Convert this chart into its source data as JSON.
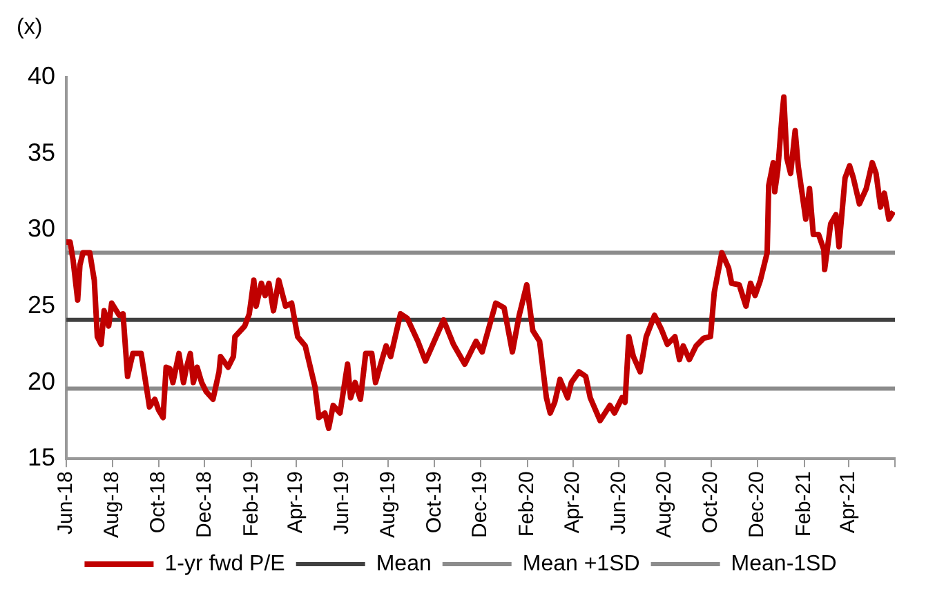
{
  "chart_data": {
    "type": "line",
    "ylabel": "(x)",
    "x": [
      "2018-06-01",
      "2018-06-06",
      "2018-06-10",
      "2018-06-16",
      "2018-06-19",
      "2018-06-23",
      "2018-07-02",
      "2018-07-08",
      "2018-07-12",
      "2018-07-17",
      "2018-07-21",
      "2018-07-27",
      "2018-07-31",
      "2018-08-10",
      "2018-08-15",
      "2018-08-21",
      "2018-08-28",
      "2018-09-08",
      "2018-09-19",
      "2018-09-26",
      "2018-10-01",
      "2018-10-07",
      "2018-10-11",
      "2018-10-16",
      "2018-10-20",
      "2018-10-28",
      "2018-11-03",
      "2018-11-07",
      "2018-11-12",
      "2018-11-16",
      "2018-11-21",
      "2018-11-27",
      "2018-12-03",
      "2018-12-12",
      "2018-12-20",
      "2018-12-22",
      "2019-01-01",
      "2019-01-08",
      "2019-01-10",
      "2019-01-23",
      "2019-01-29",
      "2019-02-04",
      "2019-02-07",
      "2019-02-14",
      "2019-02-19",
      "2019-02-24",
      "2019-03-02",
      "2019-03-09",
      "2019-03-18",
      "2019-03-26",
      "2019-04-03",
      "2019-04-13",
      "2019-04-26",
      "2019-05-01",
      "2019-05-09",
      "2019-05-14",
      "2019-05-20",
      "2019-05-29",
      "2019-06-08",
      "2019-06-12",
      "2019-06-18",
      "2019-06-25",
      "2019-07-02",
      "2019-07-10",
      "2019-07-15",
      "2019-07-23",
      "2019-07-29",
      "2019-08-04",
      "2019-08-17",
      "2019-08-26",
      "2019-09-09",
      "2019-09-19",
      "2019-09-28",
      "2019-10-13",
      "2019-10-26",
      "2019-11-10",
      "2019-11-25",
      "2019-12-03",
      "2019-12-21",
      "2020-01-01",
      "2020-01-12",
      "2020-01-21",
      "2020-01-31",
      "2020-02-08",
      "2020-02-17",
      "2020-02-26",
      "2020-03-02",
      "2020-03-08",
      "2020-03-15",
      "2020-03-25",
      "2020-03-30",
      "2020-04-09",
      "2020-04-18",
      "2020-04-24",
      "2020-05-07",
      "2020-05-20",
      "2020-05-26",
      "2020-06-05",
      "2020-06-09",
      "2020-06-14",
      "2020-06-20",
      "2020-06-29",
      "2020-07-07",
      "2020-07-18",
      "2020-07-27",
      "2020-08-04",
      "2020-08-14",
      "2020-08-20",
      "2020-08-25",
      "2020-09-02",
      "2020-09-11",
      "2020-09-21",
      "2020-09-30",
      "2020-10-05",
      "2020-10-15",
      "2020-10-24",
      "2020-10-28",
      "2020-11-07",
      "2020-11-16",
      "2020-11-22",
      "2020-11-28",
      "2020-12-05",
      "2020-12-14",
      "2020-12-16",
      "2020-12-22",
      "2020-12-24",
      "2020-12-28",
      "2021-01-03",
      "2021-01-05",
      "2021-01-09",
      "2021-01-14",
      "2021-01-20",
      "2021-01-24",
      "2021-02-03",
      "2021-02-08",
      "2021-02-13",
      "2021-02-20",
      "2021-02-27",
      "2021-02-28",
      "2021-03-08",
      "2021-03-15",
      "2021-03-19",
      "2021-03-27",
      "2021-04-02",
      "2021-04-07",
      "2021-04-15",
      "2021-04-24",
      "2021-05-02",
      "2021-05-07",
      "2021-05-13",
      "2021-05-18",
      "2021-05-24",
      "2021-05-30"
    ],
    "series": [
      {
        "name": "1-yr fwd P/E",
        "color": "#c00000",
        "values": [
          29.2,
          29.2,
          28.0,
          25.4,
          27.7,
          28.5,
          28.5,
          26.7,
          23.0,
          22.5,
          24.7,
          23.7,
          25.2,
          24.4,
          24.5,
          20.4,
          21.9,
          21.9,
          18.4,
          18.9,
          18.2,
          17.7,
          21.0,
          20.9,
          20.0,
          21.9,
          20.0,
          21.0,
          21.9,
          20.0,
          21.0,
          20.0,
          19.4,
          18.9,
          20.7,
          21.7,
          21.0,
          21.7,
          23.0,
          23.7,
          24.5,
          26.7,
          25.0,
          26.5,
          25.7,
          26.5,
          24.7,
          26.7,
          25.0,
          25.2,
          23.0,
          22.4,
          19.7,
          17.7,
          18.0,
          17.0,
          18.5,
          18.0,
          21.2,
          19.0,
          20.0,
          18.9,
          21.9,
          21.9,
          20.0,
          21.4,
          22.4,
          21.7,
          24.5,
          24.2,
          22.7,
          21.4,
          22.4,
          24.1,
          22.5,
          21.2,
          22.7,
          22.0,
          25.2,
          24.9,
          22.0,
          24.4,
          26.4,
          23.4,
          22.7,
          19.0,
          18.0,
          18.7,
          20.2,
          19.0,
          20.0,
          20.7,
          20.4,
          19.0,
          17.5,
          18.5,
          18.0,
          19.0,
          18.7,
          23.0,
          21.7,
          20.7,
          23.0,
          24.4,
          23.5,
          22.5,
          23.0,
          21.5,
          22.4,
          21.5,
          22.4,
          22.9,
          23.0,
          25.9,
          28.5,
          27.5,
          26.5,
          26.4,
          25.0,
          26.5,
          25.7,
          26.7,
          28.5,
          32.9,
          34.4,
          32.5,
          33.9,
          37.7,
          38.7,
          34.7,
          33.7,
          36.5,
          34.2,
          30.7,
          32.7,
          29.7,
          29.7,
          28.7,
          27.4,
          30.4,
          31.0,
          28.9,
          33.4,
          34.2,
          33.4,
          31.7,
          32.7,
          34.4,
          33.7,
          31.5,
          32.4,
          30.7,
          31.2
        ]
      }
    ],
    "ref_lines": [
      {
        "axis": "y",
        "value": 24.1,
        "label": "Mean",
        "color": "#404040"
      },
      {
        "axis": "y",
        "value": 28.5,
        "label": "Mean +1SD",
        "color": "#8c8c8c"
      },
      {
        "axis": "y",
        "value": 19.6,
        "label": "Mean-1SD",
        "color": "#8c8c8c"
      }
    ],
    "xlim": [
      "2018-06-01",
      "2021-06-01"
    ],
    "xticks": [
      {
        "value": "2018-06",
        "label": "Jun-18"
      },
      {
        "value": "2018-08",
        "label": "Aug-18"
      },
      {
        "value": "2018-10",
        "label": "Oct-18"
      },
      {
        "value": "2018-12",
        "label": "Dec-18"
      },
      {
        "value": "2019-02",
        "label": "Feb-19"
      },
      {
        "value": "2019-04",
        "label": "Apr-19"
      },
      {
        "value": "2019-06",
        "label": "Jun-19"
      },
      {
        "value": "2019-08",
        "label": "Aug-19"
      },
      {
        "value": "2019-10",
        "label": "Oct-19"
      },
      {
        "value": "2019-12",
        "label": "Dec-19"
      },
      {
        "value": "2020-02",
        "label": "Feb-20"
      },
      {
        "value": "2020-04",
        "label": "Apr-20"
      },
      {
        "value": "2020-06",
        "label": "Jun-20"
      },
      {
        "value": "2020-08",
        "label": "Aug-20"
      },
      {
        "value": "2020-10",
        "label": "Oct-20"
      },
      {
        "value": "2020-12",
        "label": "Dec-20"
      },
      {
        "value": "2021-02",
        "label": "Feb-21"
      },
      {
        "value": "2021-04",
        "label": "Apr-21"
      },
      {
        "value": null,
        "label": null
      }
    ],
    "ylim": [
      15,
      40
    ],
    "yticks": [
      15,
      20,
      25,
      30,
      35,
      40
    ],
    "legend": "bottom",
    "marker": "none",
    "line_style": "solid"
  }
}
